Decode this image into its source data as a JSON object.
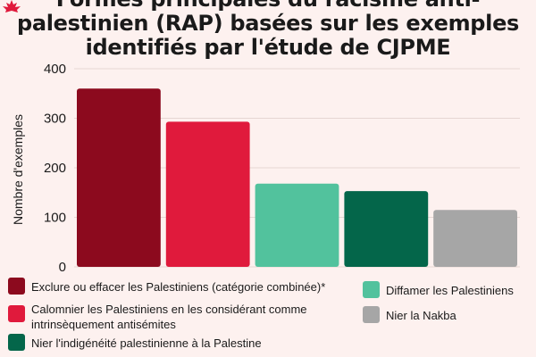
{
  "title": "Formes principales du racisme anti-\npalestinien (RAP) basées sur les exemples\nidentifiés par l'étude de CJPME",
  "logo_icon": "maple-leaf-icon",
  "chart_data": {
    "type": "bar",
    "title": "Formes principales du racisme anti-palestinien (RAP) basées sur les exemples identifiés par l'étude de CJPME",
    "xlabel": "",
    "ylabel": "Nombre d'exemples",
    "ylim": [
      0,
      400
    ],
    "yticks": [
      0,
      100,
      200,
      300,
      400
    ],
    "grid": true,
    "legend_position": "bottom",
    "categories": [
      "Exclure ou effacer les Palestiniens (catégorie combinée)*",
      "Calomnier les Palestiniens en les considérant comme intrinsèquement antisémites",
      "Diffamer les Palestiniens",
      "Nier l'indigénéité palestinienne à la Palestine",
      "Nier la Nakba"
    ],
    "values": [
      360,
      293,
      168,
      153,
      115
    ],
    "colors": [
      "#8c0a1e",
      "#e01a3c",
      "#52c29d",
      "#04664a",
      "#a6a6a6"
    ]
  }
}
